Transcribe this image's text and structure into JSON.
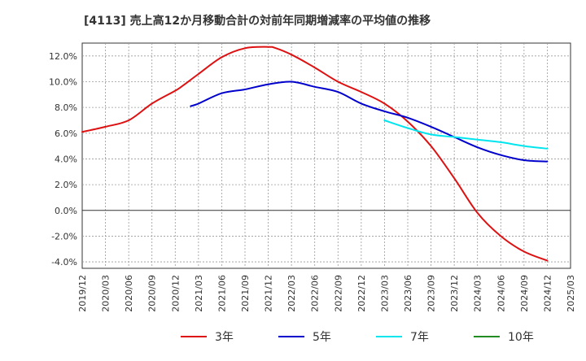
{
  "chart_data": {
    "type": "line",
    "title": "[4113]  売上高12か月移動合計の対前年同期増減率の平均値の推移",
    "xlabel": "",
    "ylabel": "",
    "ylim": [
      -4.5,
      13.0
    ],
    "yticks": [
      -4.0,
      -2.0,
      0.0,
      2.0,
      4.0,
      6.0,
      8.0,
      10.0,
      12.0
    ],
    "ytick_labels": [
      "-4.0%",
      "-2.0%",
      "0.0%",
      "2.0%",
      "4.0%",
      "6.0%",
      "8.0%",
      "10.0%",
      "12.0%"
    ],
    "xticks": [
      "2019/12",
      "2020/03",
      "2020/06",
      "2020/09",
      "2020/12",
      "2021/03",
      "2021/06",
      "2021/09",
      "2021/12",
      "2022/03",
      "2022/06",
      "2022/09",
      "2022/12",
      "2023/03",
      "2023/06",
      "2023/09",
      "2023/12",
      "2024/03",
      "2024/06",
      "2024/09",
      "2024/12",
      "2025/03"
    ],
    "grid": true,
    "legend_position": "bottom",
    "series": [
      {
        "name": "3年",
        "color": "#dd1111",
        "points": [
          [
            "2019/12",
            6.1
          ],
          [
            "2020/03",
            6.5
          ],
          [
            "2020/06",
            7.0
          ],
          [
            "2020/09",
            8.3
          ],
          [
            "2020/12",
            9.3
          ],
          [
            "2021/01",
            9.7
          ],
          [
            "2021/03",
            10.6
          ],
          [
            "2021/06",
            11.9
          ],
          [
            "2021/09",
            12.6
          ],
          [
            "2021/12",
            12.7
          ],
          [
            "2022/01",
            12.6
          ],
          [
            "2022/03",
            12.1
          ],
          [
            "2022/06",
            11.1
          ],
          [
            "2022/09",
            10.0
          ],
          [
            "2022/12",
            9.2
          ],
          [
            "2023/03",
            8.3
          ],
          [
            "2023/06",
            6.9
          ],
          [
            "2023/09",
            5.0
          ],
          [
            "2023/12",
            2.5
          ],
          [
            "2024/03",
            -0.2
          ],
          [
            "2024/06",
            -2.0
          ],
          [
            "2024/09",
            -3.2
          ],
          [
            "2024/12",
            -3.9
          ]
        ]
      },
      {
        "name": "5年",
        "color": "#0000cc",
        "points": [
          [
            "2021/02",
            8.1
          ],
          [
            "2021/03",
            8.3
          ],
          [
            "2021/06",
            9.1
          ],
          [
            "2021/09",
            9.4
          ],
          [
            "2021/12",
            9.8
          ],
          [
            "2022/03",
            10.0
          ],
          [
            "2022/06",
            9.6
          ],
          [
            "2022/09",
            9.2
          ],
          [
            "2022/12",
            8.3
          ],
          [
            "2023/03",
            7.7
          ],
          [
            "2023/06",
            7.2
          ],
          [
            "2023/09",
            6.5
          ],
          [
            "2023/12",
            5.7
          ],
          [
            "2024/03",
            4.9
          ],
          [
            "2024/06",
            4.3
          ],
          [
            "2024/09",
            3.9
          ],
          [
            "2024/12",
            3.8
          ]
        ]
      },
      {
        "name": "7年",
        "color": "#00e5ee",
        "points": [
          [
            "2023/03",
            7.0
          ],
          [
            "2023/06",
            6.4
          ],
          [
            "2023/09",
            5.9
          ],
          [
            "2023/12",
            5.7
          ],
          [
            "2024/03",
            5.5
          ],
          [
            "2024/06",
            5.3
          ],
          [
            "2024/09",
            5.0
          ],
          [
            "2024/12",
            4.8
          ]
        ]
      },
      {
        "name": "10年",
        "color": "#228b22",
        "points": []
      }
    ]
  }
}
